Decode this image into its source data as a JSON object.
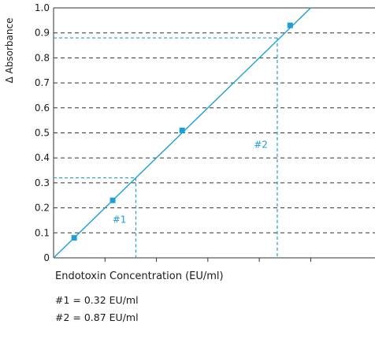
{
  "chart_data": {
    "type": "line",
    "xlabel": "Endotoxin Concentration (EU/ml)",
    "ylabel": "Δ Absorbance",
    "xlim": [
      0,
      1.25
    ],
    "ylim": [
      0,
      1.0
    ],
    "x_ticks": [
      "0.2",
      "0.4",
      "0.6",
      "0.8",
      "1.0"
    ],
    "y_ticks": [
      "0",
      "0.1",
      "0.2",
      "0.3",
      "0.4",
      "0.5",
      "0.6",
      "0.7",
      "0.8",
      "0.9",
      "1.0"
    ],
    "grid": "horizontal dashed",
    "series": [
      {
        "x": [
          0.08,
          0.23,
          0.5,
          0.92
        ],
        "y": [
          0.08,
          0.23,
          0.51,
          0.93
        ],
        "color": "#1e9fd4"
      }
    ],
    "fit_line": {
      "x": [
        0,
        1.0
      ],
      "y": [
        0,
        1.0
      ],
      "color": "#1e9fd4"
    },
    "readouts": [
      {
        "label": "#1",
        "x": 0.32,
        "y": 0.32
      },
      {
        "label": "#2",
        "x": 0.87,
        "y": 0.88
      }
    ],
    "accent_color": "#1e9fd4"
  },
  "notes": [
    "#1 = 0.32 EU/ml",
    "#2 = 0.87 EU/ml"
  ]
}
